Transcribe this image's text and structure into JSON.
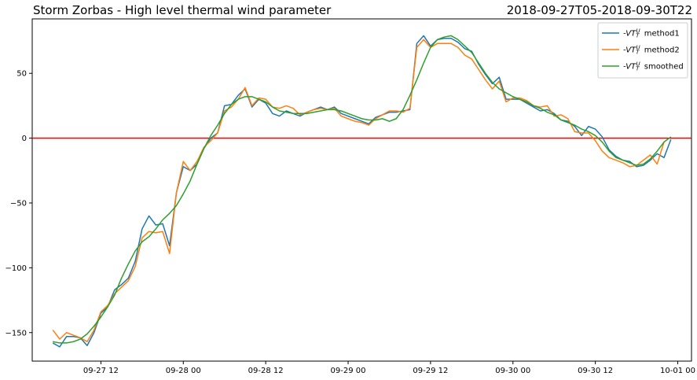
{
  "chart_data": {
    "type": "line",
    "title": "Storm Zorbas - High level thermal wind parameter",
    "subtitle": "2018-09-27T05-2018-09-30T22",
    "xlabel": "",
    "ylabel": "",
    "x_range_hours": [
      "2018-09-27T02:00",
      "2018-10-01T02:00"
    ],
    "ylim": [
      -172,
      92
    ],
    "x_ticks": [
      {
        "t": "2018-09-27T12:00",
        "label": "09-27 12"
      },
      {
        "t": "2018-09-28T00:00",
        "label": "09-28 00"
      },
      {
        "t": "2018-09-28T12:00",
        "label": "09-28 12"
      },
      {
        "t": "2018-09-29T00:00",
        "label": "09-29 00"
      },
      {
        "t": "2018-09-29T12:00",
        "label": "09-29 12"
      },
      {
        "t": "2018-09-30T00:00",
        "label": "09-30 00"
      },
      {
        "t": "2018-09-30T12:00",
        "label": "09-30 12"
      },
      {
        "t": "2018-10-01T00:00",
        "label": "10-01 00"
      }
    ],
    "y_ticks": [
      50,
      0,
      -50,
      -100,
      -150
    ],
    "reference_line": {
      "y": 0,
      "color": "#ff0000"
    },
    "legend_position": "top-right",
    "x_start": "2018-09-27T05:00",
    "x_step_hours": 1,
    "series": [
      {
        "name": "-VT_T^U method1",
        "color": "#1f77b4",
        "values": [
          -158,
          -161,
          -153,
          -153,
          -154,
          -160,
          -150,
          -135,
          -130,
          -117,
          -113,
          -108,
          -95,
          -70,
          -60,
          -67,
          -66,
          -83,
          -42,
          -22,
          -25,
          -20,
          -8,
          0,
          4,
          25,
          26,
          33,
          38,
          24,
          30,
          27,
          19,
          17,
          21,
          19,
          17,
          20,
          22,
          24,
          22,
          24,
          19,
          17,
          15,
          13,
          11,
          16,
          18,
          20,
          20,
          21,
          22,
          73,
          79,
          71,
          76,
          77,
          77,
          74,
          69,
          67,
          57,
          49,
          42,
          47,
          30,
          30,
          30,
          27,
          24,
          21,
          22,
          19,
          14,
          13,
          9,
          2,
          9,
          7,
          1,
          -9,
          -14,
          -17,
          -18,
          -22,
          -21,
          -17,
          -12,
          -15,
          -1
        ],
        "legend_label_main": "-VT",
        "legend_label_sup": "U",
        "legend_label_sub": "T",
        "legend_label_suffix": "method1"
      },
      {
        "name": "-VT_T^U method2",
        "color": "#ff7f0e",
        "values": [
          -148,
          -155,
          -150,
          -152,
          -154,
          -157,
          -148,
          -134,
          -129,
          -120,
          -115,
          -110,
          -99,
          -77,
          -72,
          -73,
          -72,
          -89,
          -42,
          -18,
          -25,
          -18,
          -7,
          -2,
          4,
          21,
          24,
          30,
          39,
          25,
          31,
          30,
          24,
          23,
          25,
          23,
          18,
          20,
          22,
          23,
          22,
          23,
          17,
          15,
          13,
          12,
          10,
          15,
          18,
          21,
          21,
          20,
          23,
          70,
          76,
          70,
          73,
          73,
          73,
          70,
          64,
          61,
          53,
          45,
          38,
          44,
          28,
          31,
          31,
          29,
          25,
          24,
          25,
          17,
          18,
          15,
          5,
          4,
          4,
          -2,
          -10,
          -15,
          -17,
          -19,
          -22,
          -21,
          -17,
          -13,
          -20,
          -3
        ],
        "legend_label_main": "-VT",
        "legend_label_sup": "U",
        "legend_label_sub": "T",
        "legend_label_suffix": "method2"
      },
      {
        "name": "-VT_T^U smoothed",
        "color": "#2ca02c",
        "values": [
          -157,
          -158,
          -158,
          -157,
          -155,
          -151,
          -145,
          -138,
          -130,
          -121,
          -108,
          -97,
          -87,
          -80,
          -76,
          -70,
          -63,
          -58,
          -52,
          -43,
          -33,
          -20,
          -8,
          2,
          10,
          19,
          26,
          30,
          32,
          32,
          30,
          28,
          24,
          21,
          20,
          19,
          19,
          19,
          20,
          21,
          22,
          22,
          21,
          19,
          17,
          15,
          14,
          14,
          15,
          13,
          15,
          22,
          33,
          45,
          58,
          70,
          76,
          78,
          79,
          76,
          71,
          66,
          58,
          50,
          43,
          38,
          35,
          32,
          30,
          28,
          25,
          23,
          20,
          18,
          14,
          12,
          10,
          7,
          5,
          2,
          -3,
          -10,
          -15,
          -17,
          -19,
          -21,
          -20,
          -16,
          -10,
          -3,
          1
        ],
        "legend_label_main": "-VT",
        "legend_label_sup": "U",
        "legend_label_sub": "T",
        "legend_label_suffix": "smoothed"
      }
    ]
  }
}
